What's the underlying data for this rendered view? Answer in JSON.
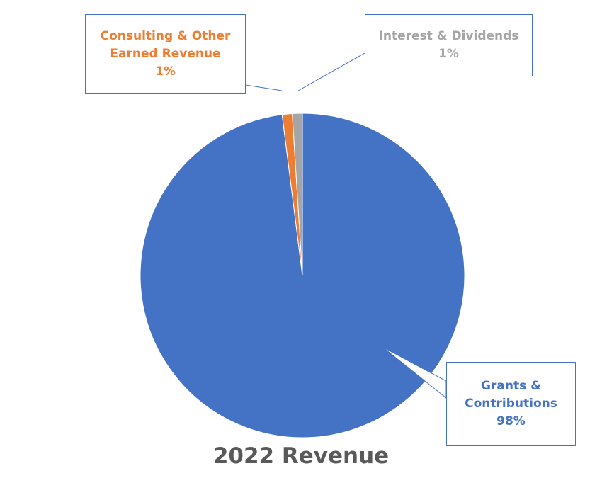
{
  "chart_data": {
    "type": "pie",
    "title": "2022 Revenue",
    "categories": [
      "Grants & Contributions",
      "Consulting & Other Earned Revenue",
      "Interest & Dividends"
    ],
    "values": [
      98,
      1,
      1
    ],
    "value_labels": [
      "98%",
      "1%",
      "1%"
    ],
    "colors": [
      "#4472c4",
      "#ed7d31",
      "#a5a5a5"
    ]
  }
}
